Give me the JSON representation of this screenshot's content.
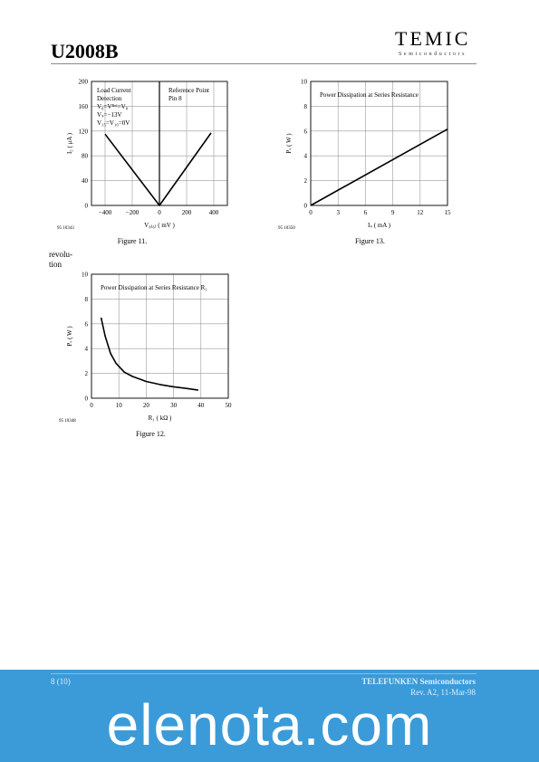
{
  "header": {
    "part_number": "U2008B",
    "logo": "TEMIC",
    "logo_sub": "Semiconductors"
  },
  "side_text": "revolu-\ntion",
  "footer": {
    "page": "8 (10)",
    "company": "TELEFUNKEN Semiconductors",
    "revision": "Rev. A2, 11-Mar-98"
  },
  "watermark": "elenota.com",
  "chart_data": [
    {
      "type": "line",
      "id": "fig11",
      "caption": "Figure 11.",
      "file_id": "95 10343",
      "ylabel": "I₅ ( μA )",
      "xlabel": "V₈₍₆₎ ( mV )",
      "xlim": [
        -500,
        500
      ],
      "ylim": [
        0,
        200
      ],
      "xticks": [
        -400,
        -200,
        0,
        200,
        400
      ],
      "xtick_labels": [
        "−400",
        "−200",
        "0",
        "200",
        "400"
      ],
      "yticks": [
        0,
        40,
        80,
        120,
        160,
        200
      ],
      "grid": true,
      "annotations": {
        "left": [
          "Load Current",
          "Detection",
          "V₀=Vᴿᵉᶠ=V₈",
          "Vₛ=−13V",
          "V₁₅=V₁₀=0V"
        ],
        "right": [
          "Reference Point",
          "Pin 8"
        ]
      },
      "series": [
        {
          "x": [
            -400,
            0,
            380
          ],
          "y": [
            115,
            0,
            117
          ]
        }
      ]
    },
    {
      "type": "line",
      "id": "fig13",
      "caption": "Figure 13.",
      "file_id": "95 10350",
      "title": "Power Dissipation at Series Resistance",
      "ylabel": "Pᵥ ( W )",
      "xlabel": "Iₛ ( mA )",
      "xlim": [
        0,
        15
      ],
      "ylim": [
        0,
        10
      ],
      "xticks": [
        0,
        3,
        6,
        9,
        12,
        15
      ],
      "yticks": [
        0,
        2,
        4,
        6,
        8,
        10
      ],
      "grid": true,
      "series": [
        {
          "x": [
            0,
            15
          ],
          "y": [
            0,
            6.15
          ]
        }
      ]
    },
    {
      "type": "line",
      "id": "fig12",
      "caption": "Figure 12.",
      "file_id": "95 10348",
      "title": "Power Dissipation at Series Resistance R₁",
      "ylabel": "Pᵥ ( W )",
      "xlabel": "R₁ ( kΩ )",
      "xlim": [
        0,
        50
      ],
      "ylim": [
        0,
        10
      ],
      "xticks": [
        0,
        10,
        20,
        30,
        40,
        50
      ],
      "yticks": [
        0,
        2,
        4,
        6,
        8,
        10
      ],
      "grid": true,
      "series": [
        {
          "x": [
            3.5,
            5,
            7,
            9,
            12,
            15,
            20,
            25,
            30,
            35,
            39
          ],
          "y": [
            6.5,
            5.0,
            3.6,
            2.8,
            2.1,
            1.75,
            1.35,
            1.1,
            0.92,
            0.78,
            0.65
          ]
        }
      ]
    }
  ]
}
